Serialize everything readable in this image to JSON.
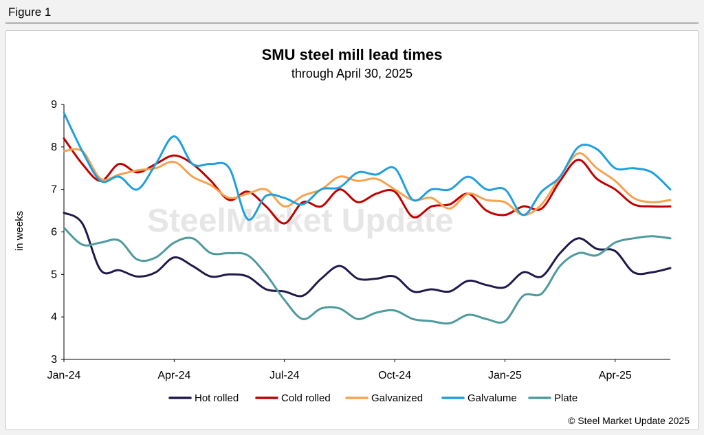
{
  "figure_label": "Figure 1",
  "watermark": "SteelMarket Update",
  "credit": "© Steel Market Update 2025",
  "chart_data": {
    "type": "line",
    "title": "SMU steel mill lead times",
    "subtitle": "through April 30, 2025",
    "xlabel": "",
    "ylabel": "in weeks",
    "ylim": [
      3,
      9
    ],
    "yticks": [
      3,
      4,
      5,
      6,
      7,
      8,
      9
    ],
    "xlim": [
      0,
      33
    ],
    "xticks": [
      {
        "x": 0,
        "label": "Jan-24"
      },
      {
        "x": 6,
        "label": "Apr-24"
      },
      {
        "x": 12,
        "label": "Jul-24"
      },
      {
        "x": 18,
        "label": "Oct-24"
      },
      {
        "x": 24,
        "label": "Jan-25"
      },
      {
        "x": 30,
        "label": "Apr-25"
      }
    ],
    "grid": false,
    "legend_position": "bottom",
    "x": [
      0,
      1,
      2,
      3,
      4,
      5,
      6,
      7,
      8,
      9,
      10,
      11,
      12,
      13,
      14,
      15,
      16,
      17,
      18,
      19,
      20,
      21,
      22,
      23,
      24,
      25,
      26,
      27,
      28,
      29,
      30,
      31,
      32,
      33
    ],
    "series": [
      {
        "name": "Hot rolled",
        "color": "#1f1a4a",
        "values": [
          6.45,
          6.2,
          5.1,
          5.1,
          4.95,
          5.05,
          5.4,
          5.2,
          4.95,
          5.0,
          4.95,
          4.65,
          4.6,
          4.5,
          4.9,
          5.2,
          4.9,
          4.9,
          4.95,
          4.6,
          4.65,
          4.6,
          4.85,
          4.75,
          4.7,
          5.05,
          4.95,
          5.5,
          5.85,
          5.6,
          5.55,
          5.05,
          5.05,
          5.15
        ]
      },
      {
        "name": "Cold rolled",
        "color": "#c00000",
        "values": [
          8.2,
          7.6,
          7.2,
          7.6,
          7.4,
          7.6,
          7.8,
          7.6,
          7.2,
          6.75,
          6.95,
          6.6,
          6.2,
          6.7,
          6.6,
          7.0,
          6.7,
          6.9,
          6.95,
          6.35,
          6.6,
          6.65,
          6.9,
          6.5,
          6.4,
          6.6,
          6.55,
          7.2,
          7.7,
          7.25,
          7.0,
          6.65,
          6.6,
          6.6
        ]
      },
      {
        "name": "Galvanized",
        "color": "#f7a250",
        "values": [
          7.9,
          7.9,
          7.25,
          7.35,
          7.45,
          7.5,
          7.65,
          7.3,
          7.1,
          6.8,
          6.9,
          7.0,
          6.6,
          6.85,
          7.0,
          7.3,
          7.2,
          7.25,
          7.0,
          6.75,
          6.8,
          6.55,
          6.9,
          6.75,
          6.7,
          6.4,
          6.65,
          7.3,
          7.85,
          7.5,
          7.2,
          6.8,
          6.7,
          6.75
        ]
      },
      {
        "name": "Galvalume",
        "color": "#1f9fdc",
        "values": [
          8.8,
          7.9,
          7.2,
          7.3,
          7.0,
          7.6,
          8.25,
          7.6,
          7.6,
          7.5,
          6.3,
          6.85,
          6.8,
          6.65,
          7.0,
          7.05,
          7.4,
          7.35,
          7.5,
          6.75,
          7.0,
          7.0,
          7.3,
          7.0,
          7.0,
          6.4,
          6.95,
          7.3,
          8.0,
          7.95,
          7.5,
          7.5,
          7.4,
          7.0
        ]
      },
      {
        "name": "Plate",
        "color": "#4e9a9c",
        "values": [
          6.1,
          5.7,
          5.75,
          5.8,
          5.35,
          5.4,
          5.75,
          5.85,
          5.5,
          5.5,
          5.45,
          5.0,
          4.4,
          3.95,
          4.2,
          4.2,
          3.95,
          4.1,
          4.15,
          3.95,
          3.9,
          3.85,
          4.05,
          3.95,
          3.9,
          4.5,
          4.55,
          5.2,
          5.5,
          5.45,
          5.75,
          5.85,
          5.9,
          5.85
        ]
      }
    ]
  }
}
